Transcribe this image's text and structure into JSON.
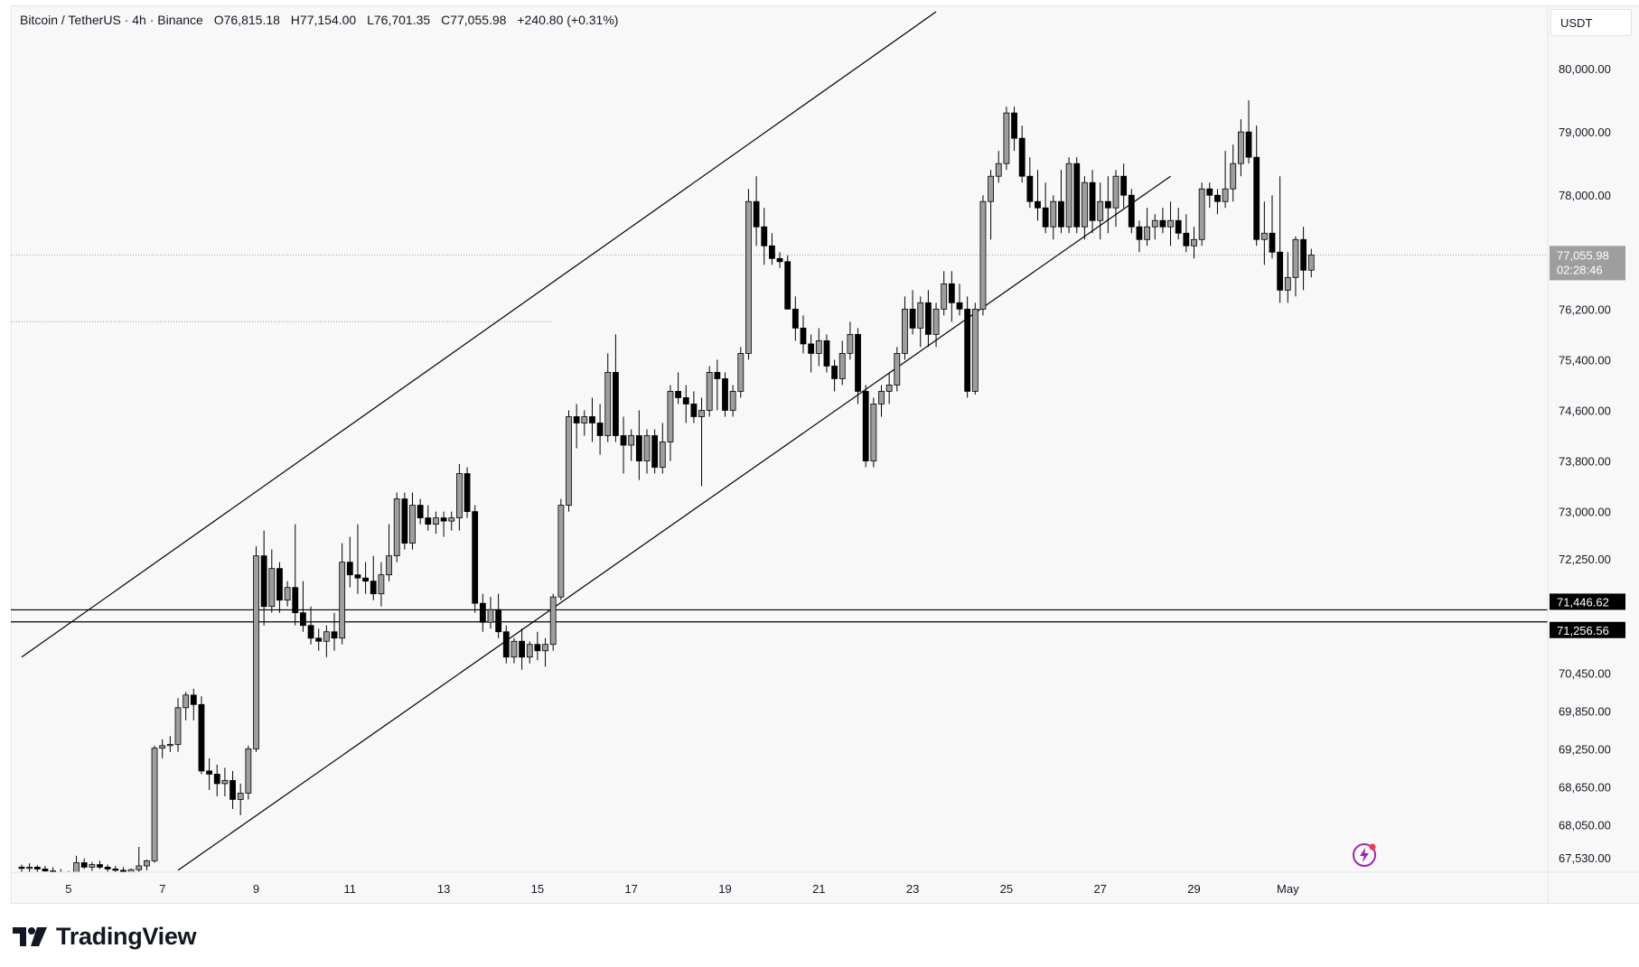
{
  "header": {
    "symbol": "Bitcoin / TetherUS · 4h · Binance",
    "open": "O76,815.18",
    "high": "H77,154.00",
    "low": "L76,701.35",
    "close": "C77,055.98",
    "change": "+240.80 (+0.31%)"
  },
  "currency": "USDT",
  "brand": {
    "name": "TradingView"
  },
  "colors": {
    "up_body": "#9e9e9e",
    "down_body": "#000000",
    "line": "#000000",
    "price_label_bg": "#9e9e9e",
    "level_label_bg": "#000000",
    "accent": "#9c27b0"
  },
  "chart_data": {
    "type": "candlestick",
    "interval": "4h",
    "x_unit": "4h bars starting Apr 4 00:00",
    "y_range": [
      67300,
      81000
    ],
    "x_ticks": [
      {
        "label": "5",
        "bar": 6
      },
      {
        "label": "7",
        "bar": 18
      },
      {
        "label": "9",
        "bar": 30
      },
      {
        "label": "11",
        "bar": 42
      },
      {
        "label": "13",
        "bar": 54
      },
      {
        "label": "15",
        "bar": 66
      },
      {
        "label": "17",
        "bar": 78
      },
      {
        "label": "19",
        "bar": 90
      },
      {
        "label": "21",
        "bar": 102
      },
      {
        "label": "23",
        "bar": 114
      },
      {
        "label": "25",
        "bar": 126
      },
      {
        "label": "27",
        "bar": 138
      },
      {
        "label": "29",
        "bar": 150
      },
      {
        "label": "May",
        "bar": 162
      }
    ],
    "y_ticks": [
      {
        "label": "80,000.00",
        "value": 80000
      },
      {
        "label": "79,000.00",
        "value": 79000
      },
      {
        "label": "78,000.00",
        "value": 78000
      },
      {
        "label": "76,200.00",
        "value": 76200
      },
      {
        "label": "75,400.00",
        "value": 75400
      },
      {
        "label": "74,600.00",
        "value": 74600
      },
      {
        "label": "73,800.00",
        "value": 73800
      },
      {
        "label": "73,000.00",
        "value": 73000
      },
      {
        "label": "72,250.00",
        "value": 72250
      },
      {
        "label": "70,450.00",
        "value": 70450
      },
      {
        "label": "69,850.00",
        "value": 69850
      },
      {
        "label": "69,250.00",
        "value": 69250
      },
      {
        "label": "68,650.00",
        "value": 68650
      },
      {
        "label": "68,050.00",
        "value": 68050
      },
      {
        "label": "67,530.00",
        "value": 67530
      }
    ],
    "price_label": {
      "value": 77055.98,
      "text": "77,055.98",
      "countdown": "02:28:46"
    },
    "horizontal_levels": [
      {
        "value": 71446.62,
        "text": "71,446.62"
      },
      {
        "value": 71256.56,
        "text": "71,256.56"
      }
    ],
    "dotted_levels": [
      {
        "value": 77055.98,
        "from_bar": 0
      },
      {
        "value": 76000,
        "from_bar": 0,
        "to_bar": 68
      }
    ],
    "trendlines": [
      {
        "name": "channel-upper",
        "from": [
          0,
          70700
        ],
        "to": [
          117,
          80900
        ]
      },
      {
        "name": "channel-lower",
        "from": [
          20,
          67330
        ],
        "to": [
          147,
          78300
        ]
      }
    ],
    "candles": [
      [
        67380,
        67420,
        67280,
        67360
      ],
      [
        67360,
        67440,
        67300,
        67380
      ],
      [
        67380,
        67410,
        67290,
        67350
      ],
      [
        67350,
        67400,
        67280,
        67320
      ],
      [
        67320,
        67380,
        67250,
        67300
      ],
      [
        67300,
        67350,
        67220,
        67260
      ],
      [
        67260,
        67320,
        67200,
        67280
      ],
      [
        67280,
        67560,
        67250,
        67450
      ],
      [
        67450,
        67520,
        67350,
        67380
      ],
      [
        67380,
        67460,
        67320,
        67420
      ],
      [
        67420,
        67480,
        67350,
        67380
      ],
      [
        67380,
        67420,
        67300,
        67350
      ],
      [
        67350,
        67400,
        67280,
        67330
      ],
      [
        67330,
        67380,
        67260,
        67300
      ],
      [
        67300,
        67360,
        67250,
        67340
      ],
      [
        67340,
        67700,
        67300,
        67400
      ],
      [
        67400,
        67500,
        67330,
        67480
      ],
      [
        67480,
        69300,
        67450,
        69260
      ],
      [
        69260,
        69400,
        69100,
        69300
      ],
      [
        69300,
        69450,
        69200,
        69320
      ],
      [
        69320,
        70050,
        69200,
        69900
      ],
      [
        69900,
        70150,
        69700,
        70100
      ],
      [
        70100,
        70200,
        69700,
        69950
      ],
      [
        69950,
        70080,
        68850,
        68900
      ],
      [
        68900,
        69100,
        68600,
        68850
      ],
      [
        68850,
        69000,
        68500,
        68700
      ],
      [
        68700,
        68950,
        68500,
        68750
      ],
      [
        68750,
        68900,
        68300,
        68450
      ],
      [
        68450,
        68700,
        68200,
        68550
      ],
      [
        68550,
        69300,
        68450,
        69250
      ],
      [
        69250,
        72450,
        69200,
        72300
      ],
      [
        72300,
        72700,
        71200,
        71500
      ],
      [
        71500,
        72400,
        71400,
        72100
      ],
      [
        72100,
        72200,
        71400,
        71600
      ],
      [
        71600,
        71900,
        71500,
        71800
      ],
      [
        71800,
        72800,
        71200,
        71400
      ],
      [
        71400,
        71900,
        71100,
        71200
      ],
      [
        71200,
        71500,
        70900,
        71000
      ],
      [
        71000,
        71150,
        70800,
        70950
      ],
      [
        70950,
        71200,
        70700,
        71100
      ],
      [
        71100,
        71400,
        70800,
        71000
      ],
      [
        71000,
        72500,
        70900,
        72200
      ],
      [
        72200,
        72600,
        71800,
        72000
      ],
      [
        72000,
        72800,
        71700,
        71950
      ],
      [
        71950,
        72200,
        71700,
        71900
      ],
      [
        71900,
        72300,
        71600,
        71700
      ],
      [
        71700,
        72200,
        71500,
        72000
      ],
      [
        72000,
        72800,
        71900,
        72300
      ],
      [
        72300,
        73300,
        72200,
        73200
      ],
      [
        73200,
        73300,
        72400,
        72500
      ],
      [
        72500,
        73300,
        72400,
        73100
      ],
      [
        73100,
        73200,
        72800,
        72900
      ],
      [
        72900,
        73100,
        72700,
        72800
      ],
      [
        72800,
        73000,
        72650,
        72900
      ],
      [
        72900,
        73000,
        72600,
        72850
      ],
      [
        72850,
        73000,
        72700,
        72900
      ],
      [
        72900,
        73750,
        72700,
        73600
      ],
      [
        73600,
        73700,
        72900,
        73000
      ],
      [
        73000,
        73100,
        71400,
        71550
      ],
      [
        71550,
        71700,
        71100,
        71250
      ],
      [
        71250,
        71650,
        71150,
        71450
      ],
      [
        71450,
        71700,
        71000,
        71100
      ],
      [
        71100,
        71200,
        70600,
        70700
      ],
      [
        70700,
        71000,
        70600,
        70950
      ],
      [
        70950,
        71150,
        70500,
        70700
      ],
      [
        70700,
        70950,
        70600,
        70900
      ],
      [
        70900,
        71100,
        70650,
        70800
      ],
      [
        70800,
        71000,
        70550,
        70900
      ],
      [
        70900,
        71700,
        70800,
        71650
      ],
      [
        71650,
        73200,
        71600,
        73100
      ],
      [
        73100,
        74600,
        73000,
        74500
      ],
      [
        74500,
        74700,
        74000,
        74400
      ],
      [
        74400,
        74600,
        74200,
        74500
      ],
      [
        74500,
        74800,
        74100,
        74400
      ],
      [
        74400,
        74700,
        73900,
        74200
      ],
      [
        74200,
        75500,
        74100,
        75200
      ],
      [
        75200,
        75800,
        74100,
        74200
      ],
      [
        74200,
        74500,
        73600,
        74050
      ],
      [
        74050,
        74300,
        73800,
        74200
      ],
      [
        74200,
        74600,
        73500,
        73800
      ],
      [
        73800,
        74300,
        73600,
        74200
      ],
      [
        74200,
        74300,
        73600,
        73700
      ],
      [
        73700,
        74400,
        73600,
        74100
      ],
      [
        74100,
        75000,
        73800,
        74900
      ],
      [
        74900,
        75200,
        74700,
        74800
      ],
      [
        74800,
        75000,
        74400,
        74700
      ],
      [
        74700,
        74900,
        74400,
        74500
      ],
      [
        74500,
        74800,
        73400,
        74600
      ],
      [
        74600,
        75300,
        74500,
        75200
      ],
      [
        75200,
        75400,
        74600,
        75100
      ],
      [
        75100,
        75200,
        74500,
        74600
      ],
      [
        74600,
        75000,
        74500,
        74900
      ],
      [
        74900,
        75600,
        74800,
        75500
      ],
      [
        75500,
        78100,
        75400,
        77900
      ],
      [
        77900,
        78300,
        77200,
        77500
      ],
      [
        77500,
        77800,
        76900,
        77200
      ],
      [
        77200,
        77400,
        76900,
        77000
      ],
      [
        77000,
        77100,
        76850,
        76950
      ],
      [
        76950,
        77050,
        76300,
        76200
      ],
      [
        76200,
        76400,
        75700,
        75900
      ],
      [
        75900,
        76100,
        75500,
        75650
      ],
      [
        75650,
        75800,
        75200,
        75500
      ],
      [
        75500,
        75900,
        75300,
        75700
      ],
      [
        75700,
        75800,
        75200,
        75300
      ],
      [
        75300,
        75400,
        74900,
        75100
      ],
      [
        75100,
        75700,
        75000,
        75500
      ],
      [
        75500,
        76000,
        75400,
        75800
      ],
      [
        75800,
        75900,
        74700,
        74900
      ],
      [
        74900,
        75000,
        73700,
        73800
      ],
      [
        73800,
        74800,
        73700,
        74700
      ],
      [
        74700,
        75000,
        74500,
        74900
      ],
      [
        74900,
        75200,
        74700,
        75000
      ],
      [
        75000,
        75600,
        74900,
        75500
      ],
      [
        75500,
        76400,
        75400,
        76200
      ],
      [
        76200,
        76500,
        75800,
        75900
      ],
      [
        75900,
        76400,
        75600,
        76300
      ],
      [
        76300,
        76500,
        75600,
        75800
      ],
      [
        75800,
        76300,
        75600,
        76200
      ],
      [
        76200,
        76800,
        76100,
        76600
      ],
      [
        76600,
        76800,
        76000,
        76300
      ],
      [
        76300,
        76600,
        76100,
        76200
      ],
      [
        76200,
        76400,
        74800,
        74900
      ],
      [
        74900,
        76300,
        74850,
        76200
      ],
      [
        76200,
        78000,
        76100,
        77900
      ],
      [
        77900,
        78400,
        77300,
        78300
      ],
      [
        78300,
        78700,
        78200,
        78500
      ],
      [
        78500,
        79400,
        78400,
        79300
      ],
      [
        79300,
        79400,
        78700,
        78900
      ],
      [
        78900,
        79100,
        78200,
        78300
      ],
      [
        78300,
        78600,
        77800,
        77900
      ],
      [
        77900,
        78400,
        77600,
        77800
      ],
      [
        77800,
        78200,
        77400,
        77500
      ],
      [
        77500,
        78000,
        77300,
        77900
      ],
      [
        77900,
        78400,
        77400,
        77500
      ],
      [
        77500,
        78600,
        77400,
        78500
      ],
      [
        78500,
        78600,
        77400,
        77500
      ],
      [
        77500,
        78300,
        77300,
        78200
      ],
      [
        78200,
        78400,
        77400,
        77600
      ],
      [
        77600,
        78200,
        77300,
        77900
      ],
      [
        77900,
        78300,
        77400,
        77800
      ],
      [
        77800,
        78400,
        77500,
        78300
      ],
      [
        78300,
        78500,
        77800,
        78000
      ],
      [
        78000,
        78100,
        77400,
        77500
      ],
      [
        77500,
        77600,
        77100,
        77300
      ],
      [
        77300,
        77800,
        77200,
        77500
      ],
      [
        77500,
        77700,
        77300,
        77600
      ],
      [
        77600,
        77800,
        77400,
        77500
      ],
      [
        77500,
        77900,
        77200,
        77600
      ],
      [
        77600,
        77800,
        77300,
        77400
      ],
      [
        77400,
        77700,
        77100,
        77200
      ],
      [
        77200,
        77500,
        77000,
        77300
      ],
      [
        77300,
        78200,
        77200,
        78100
      ],
      [
        78100,
        78200,
        77800,
        78000
      ],
      [
        78000,
        78100,
        77700,
        77900
      ],
      [
        77900,
        78700,
        77800,
        78100
      ],
      [
        78100,
        78800,
        77900,
        78500
      ],
      [
        78500,
        79200,
        78300,
        79000
      ],
      [
        79000,
        79500,
        78500,
        78600
      ],
      [
        78600,
        79100,
        77200,
        77300
      ],
      [
        77300,
        77900,
        76900,
        77400
      ],
      [
        77400,
        78000,
        77000,
        77100
      ],
      [
        77100,
        78300,
        76300,
        76500
      ],
      [
        76500,
        77100,
        76300,
        76700
      ],
      [
        76700,
        77350,
        76400,
        77300
      ],
      [
        77300,
        77500,
        76500,
        76815
      ],
      [
        76815,
        77154,
        76701,
        77056
      ]
    ]
  }
}
